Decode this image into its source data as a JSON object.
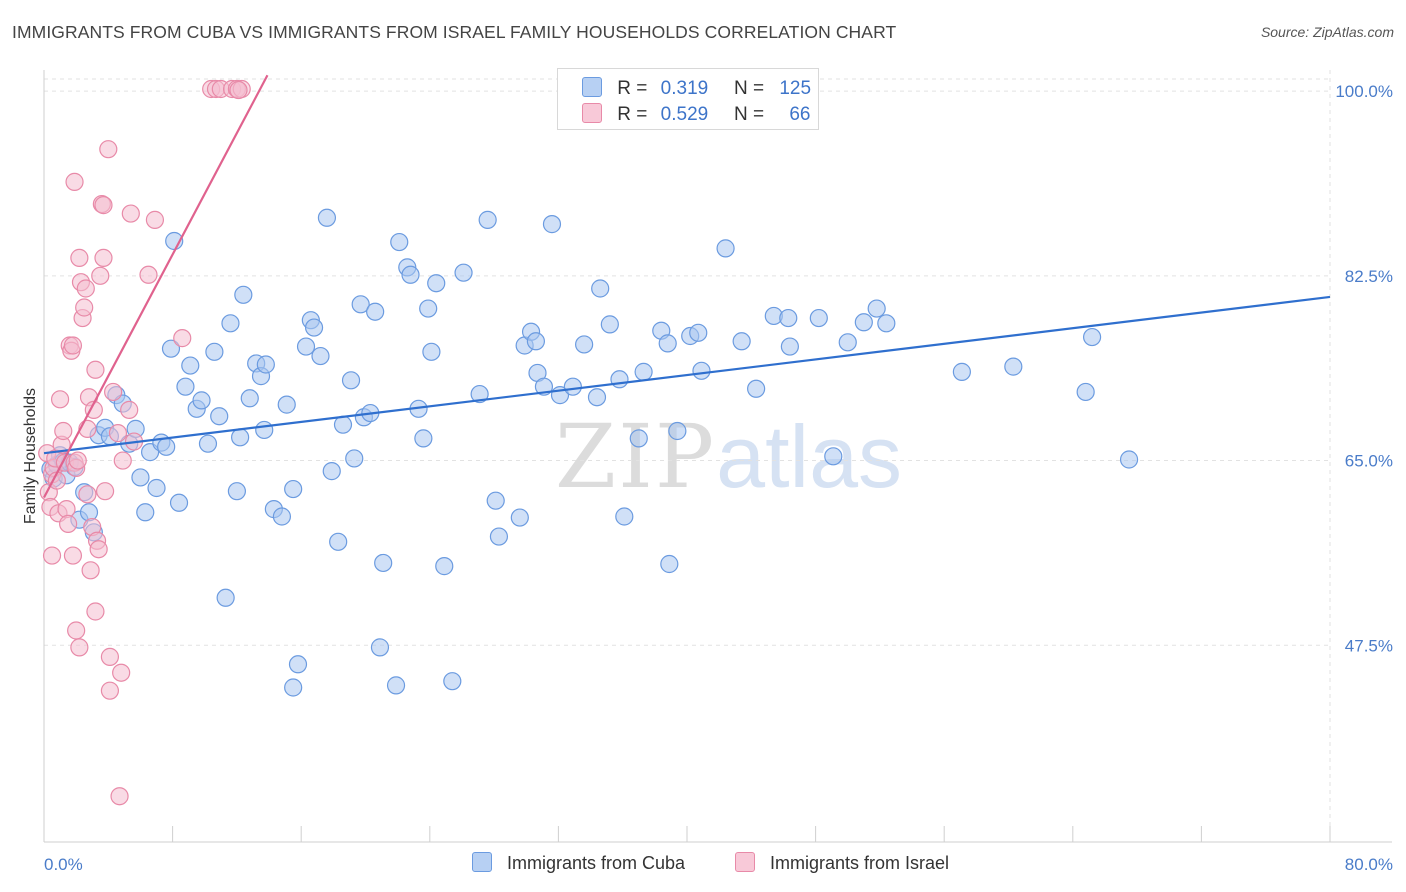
{
  "title": "IMMIGRANTS FROM CUBA VS IMMIGRANTS FROM ISRAEL FAMILY HOUSEHOLDS CORRELATION CHART",
  "source": "Source: ZipAtlas.com",
  "watermark": {
    "zip": "ZIP",
    "atlas": "atlas"
  },
  "legend": {
    "cuba": {
      "r_label": "R =",
      "r_value": "0.319",
      "n_label": "N =",
      "n_value": "125"
    },
    "israel": {
      "r_label": "R =",
      "r_value": "0.529",
      "n_label": "N =",
      "n_value": "66"
    }
  },
  "chart_data": {
    "type": "scatter",
    "title": "IMMIGRANTS FROM CUBA VS IMMIGRANTS FROM ISRAEL FAMILY HOUSEHOLDS CORRELATION CHART",
    "xlabel": "",
    "ylabel": "Family Households",
    "xlim": [
      0,
      80
    ],
    "ylim": [
      30,
      102
    ],
    "x_tick_labels": [
      "0.0%",
      "80.0%"
    ],
    "y_ticks": [
      47.5,
      65.0,
      82.5,
      100.0
    ],
    "y_tick_labels": [
      "47.5%",
      "65.0%",
      "82.5%",
      "100.0%"
    ],
    "grid": true,
    "legend_position": "top-center",
    "series": [
      {
        "name": "Immigrants from Cuba",
        "color": "#6b9be0",
        "fill": "#a9c6f0",
        "trend": {
          "x": [
            0,
            80
          ],
          "y": [
            65.7,
            80.5
          ],
          "color": "#2f6fce"
        },
        "points": [
          [
            0.4,
            64.2
          ],
          [
            0.6,
            63.3
          ],
          [
            0.8,
            64.6
          ],
          [
            1.0,
            65.5
          ],
          [
            1.2,
            64.9
          ],
          [
            1.4,
            63.6
          ],
          [
            1.6,
            64.8
          ],
          [
            1.9,
            64.4
          ],
          [
            2.2,
            59.4
          ],
          [
            2.5,
            62.0
          ],
          [
            2.8,
            60.1
          ],
          [
            3.1,
            58.2
          ],
          [
            3.4,
            67.4
          ],
          [
            3.8,
            68.1
          ],
          [
            4.1,
            67.3
          ],
          [
            4.5,
            71.2
          ],
          [
            4.9,
            70.4
          ],
          [
            5.3,
            66.6
          ],
          [
            5.7,
            68.0
          ],
          [
            6.0,
            63.4
          ],
          [
            6.3,
            60.1
          ],
          [
            6.6,
            65.8
          ],
          [
            7.0,
            62.4
          ],
          [
            7.3,
            66.7
          ],
          [
            7.6,
            66.3
          ],
          [
            7.9,
            75.6
          ],
          [
            8.1,
            85.8
          ],
          [
            8.4,
            61.0
          ],
          [
            8.8,
            72.0
          ],
          [
            9.1,
            74.0
          ],
          [
            9.5,
            69.9
          ],
          [
            9.8,
            70.7
          ],
          [
            10.2,
            66.6
          ],
          [
            10.6,
            75.3
          ],
          [
            10.9,
            69.2
          ],
          [
            11.3,
            52.0
          ],
          [
            11.6,
            78.0
          ],
          [
            12.0,
            62.1
          ],
          [
            12.2,
            67.2
          ],
          [
            12.4,
            80.7
          ],
          [
            12.8,
            70.9
          ],
          [
            13.2,
            74.2
          ],
          [
            13.5,
            73.0
          ],
          [
            13.8,
            74.1
          ],
          [
            13.7,
            67.9
          ],
          [
            14.3,
            60.4
          ],
          [
            14.8,
            59.7
          ],
          [
            15.1,
            70.3
          ],
          [
            15.5,
            62.3
          ],
          [
            15.8,
            45.7
          ],
          [
            15.5,
            43.5
          ],
          [
            16.3,
            75.8
          ],
          [
            16.6,
            78.3
          ],
          [
            16.8,
            77.6
          ],
          [
            17.2,
            74.9
          ],
          [
            17.6,
            88.0
          ],
          [
            17.9,
            64.0
          ],
          [
            18.3,
            57.3
          ],
          [
            18.6,
            68.4
          ],
          [
            19.1,
            72.6
          ],
          [
            19.3,
            65.2
          ],
          [
            19.7,
            79.8
          ],
          [
            19.9,
            69.1
          ],
          [
            20.3,
            69.5
          ],
          [
            20.6,
            79.1
          ],
          [
            20.9,
            47.3
          ],
          [
            21.1,
            55.3
          ],
          [
            21.9,
            43.7
          ],
          [
            22.1,
            85.7
          ],
          [
            22.6,
            83.3
          ],
          [
            22.8,
            82.6
          ],
          [
            23.3,
            69.9
          ],
          [
            23.6,
            67.1
          ],
          [
            23.9,
            79.4
          ],
          [
            24.1,
            75.3
          ],
          [
            24.4,
            81.8
          ],
          [
            24.9,
            55.0
          ],
          [
            25.4,
            44.1
          ],
          [
            26.1,
            82.8
          ],
          [
            27.1,
            71.3
          ],
          [
            27.6,
            87.8
          ],
          [
            28.1,
            61.2
          ],
          [
            28.3,
            57.8
          ],
          [
            29.6,
            59.6
          ],
          [
            29.9,
            75.9
          ],
          [
            30.3,
            77.2
          ],
          [
            30.6,
            76.3
          ],
          [
            30.7,
            73.3
          ],
          [
            31.1,
            72.0
          ],
          [
            31.6,
            87.4
          ],
          [
            32.1,
            71.2
          ],
          [
            32.9,
            72.0
          ],
          [
            33.6,
            76.0
          ],
          [
            34.4,
            71.0
          ],
          [
            34.6,
            81.3
          ],
          [
            35.2,
            77.9
          ],
          [
            35.8,
            72.7
          ],
          [
            36.1,
            59.7
          ],
          [
            37.0,
            67.1
          ],
          [
            37.3,
            73.4
          ],
          [
            38.4,
            77.3
          ],
          [
            38.8,
            76.1
          ],
          [
            38.9,
            55.2
          ],
          [
            39.4,
            67.8
          ],
          [
            40.2,
            76.8
          ],
          [
            40.7,
            77.1
          ],
          [
            40.9,
            73.5
          ],
          [
            42.4,
            85.1
          ],
          [
            43.4,
            76.3
          ],
          [
            44.3,
            71.8
          ],
          [
            45.4,
            78.7
          ],
          [
            46.3,
            78.5
          ],
          [
            46.4,
            75.8
          ],
          [
            48.2,
            78.5
          ],
          [
            49.1,
            65.4
          ],
          [
            50.0,
            76.2
          ],
          [
            51.0,
            78.1
          ],
          [
            51.8,
            79.4
          ],
          [
            52.4,
            78.0
          ],
          [
            57.1,
            73.4
          ],
          [
            60.3,
            73.9
          ],
          [
            64.8,
            71.5
          ],
          [
            65.2,
            76.7
          ],
          [
            67.5,
            65.1
          ]
        ]
      },
      {
        "name": "Immigrants from Israel",
        "color": "#e88aa8",
        "fill": "#f4bed0",
        "trend": {
          "x": [
            0,
            13.9
          ],
          "y": [
            61.5,
            101.5
          ],
          "color": "#e0628e"
        },
        "points": [
          [
            0.2,
            65.7
          ],
          [
            0.3,
            62.0
          ],
          [
            0.4,
            60.6
          ],
          [
            0.5,
            63.7
          ],
          [
            0.6,
            64.3
          ],
          [
            0.5,
            56.0
          ],
          [
            0.7,
            65.2
          ],
          [
            0.8,
            63.1
          ],
          [
            0.9,
            60.0
          ],
          [
            1.0,
            70.8
          ],
          [
            1.1,
            66.5
          ],
          [
            1.2,
            67.8
          ],
          [
            1.3,
            64.8
          ],
          [
            1.4,
            60.4
          ],
          [
            1.5,
            59.0
          ],
          [
            1.6,
            75.9
          ],
          [
            1.7,
            75.4
          ],
          [
            1.8,
            75.9
          ],
          [
            1.9,
            64.8
          ],
          [
            1.8,
            56.0
          ],
          [
            1.9,
            91.4
          ],
          [
            2.0,
            64.3
          ],
          [
            2.1,
            65.0
          ],
          [
            2.0,
            48.9
          ],
          [
            2.2,
            47.3
          ],
          [
            2.2,
            84.2
          ],
          [
            2.3,
            81.9
          ],
          [
            2.4,
            78.5
          ],
          [
            2.5,
            79.5
          ],
          [
            2.6,
            81.3
          ],
          [
            2.7,
            68.0
          ],
          [
            2.7,
            61.8
          ],
          [
            2.8,
            71.0
          ],
          [
            2.9,
            54.6
          ],
          [
            3.0,
            58.7
          ],
          [
            3.1,
            69.8
          ],
          [
            3.2,
            73.6
          ],
          [
            3.2,
            50.7
          ],
          [
            3.3,
            57.4
          ],
          [
            3.4,
            56.6
          ],
          [
            3.5,
            82.5
          ],
          [
            3.6,
            89.3
          ],
          [
            3.7,
            84.2
          ],
          [
            3.7,
            89.2
          ],
          [
            3.8,
            62.1
          ],
          [
            4.0,
            94.5
          ],
          [
            4.1,
            46.4
          ],
          [
            4.1,
            43.2
          ],
          [
            4.3,
            71.5
          ],
          [
            4.6,
            67.6
          ],
          [
            4.7,
            33.2
          ],
          [
            4.8,
            44.9
          ],
          [
            4.9,
            65.0
          ],
          [
            5.3,
            69.8
          ],
          [
            5.4,
            88.4
          ],
          [
            5.6,
            66.8
          ],
          [
            6.5,
            82.6
          ],
          [
            6.9,
            87.8
          ],
          [
            8.6,
            76.6
          ],
          [
            10.4,
            100.2
          ],
          [
            10.7,
            100.2
          ],
          [
            11.0,
            100.2
          ],
          [
            11.7,
            100.2
          ],
          [
            12.0,
            100.2
          ],
          [
            12.3,
            100.2
          ],
          [
            12.1,
            100.1
          ]
        ]
      }
    ]
  }
}
